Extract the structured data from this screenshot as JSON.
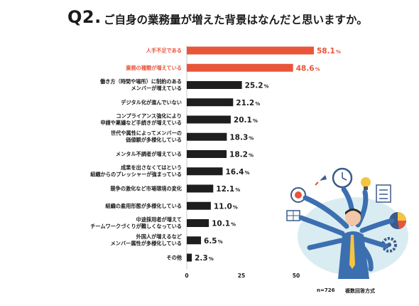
{
  "header": {
    "question_no": "Q2.",
    "question": "ご自身の業務量が増えた背景はなんだと思いますか。"
  },
  "footer": {
    "n": "n=726",
    "answer_type": "複数回答方式"
  },
  "colors": {
    "highlight": "#e8553b",
    "normal": "#1e1e1e"
  },
  "chart_data": {
    "type": "bar",
    "orientation": "horizontal",
    "title": "",
    "unit": "%",
    "categories": [
      [
        "人手不足である"
      ],
      [
        "業務の種類が増えている"
      ],
      [
        "働き方（時間や場所）に制約のある",
        "メンバーが増えている"
      ],
      [
        "デジタル化が進んでいない"
      ],
      [
        "コンプライアンス強化により",
        "申請や稟議など手続きが増えている"
      ],
      [
        "世代や属性によってメンバーの",
        "価値観が多様化している"
      ],
      [
        "メンタル不調者が増えている"
      ],
      [
        "成果を出さなくてはという",
        "組織からのプレッシャーが強まっている"
      ],
      [
        "競争の激化など市場環境の変化"
      ],
      [
        "組織の雇用形態が多様化している"
      ],
      [
        "中途採用者が増えて",
        "チームワークづくりが難しくなっている"
      ],
      [
        "外国人が増えるなど",
        "メンバー属性が多様化している"
      ],
      [
        "その他"
      ]
    ],
    "values": [
      58.1,
      48.6,
      25.2,
      21.2,
      20.1,
      18.3,
      18.2,
      16.4,
      12.1,
      11.0,
      10.1,
      6.5,
      2.3
    ],
    "value_labels": [
      "58.1",
      "48.6",
      "25.2",
      "21.2",
      "20.1",
      "18.3",
      "18.2",
      "16.4",
      "12.1",
      "11.0",
      "10.1",
      "6.5",
      "2.3"
    ],
    "highlighted": [
      0,
      1
    ],
    "xlim": [
      0,
      60
    ],
    "xticks": [
      0,
      25,
      50
    ],
    "grid": false
  }
}
